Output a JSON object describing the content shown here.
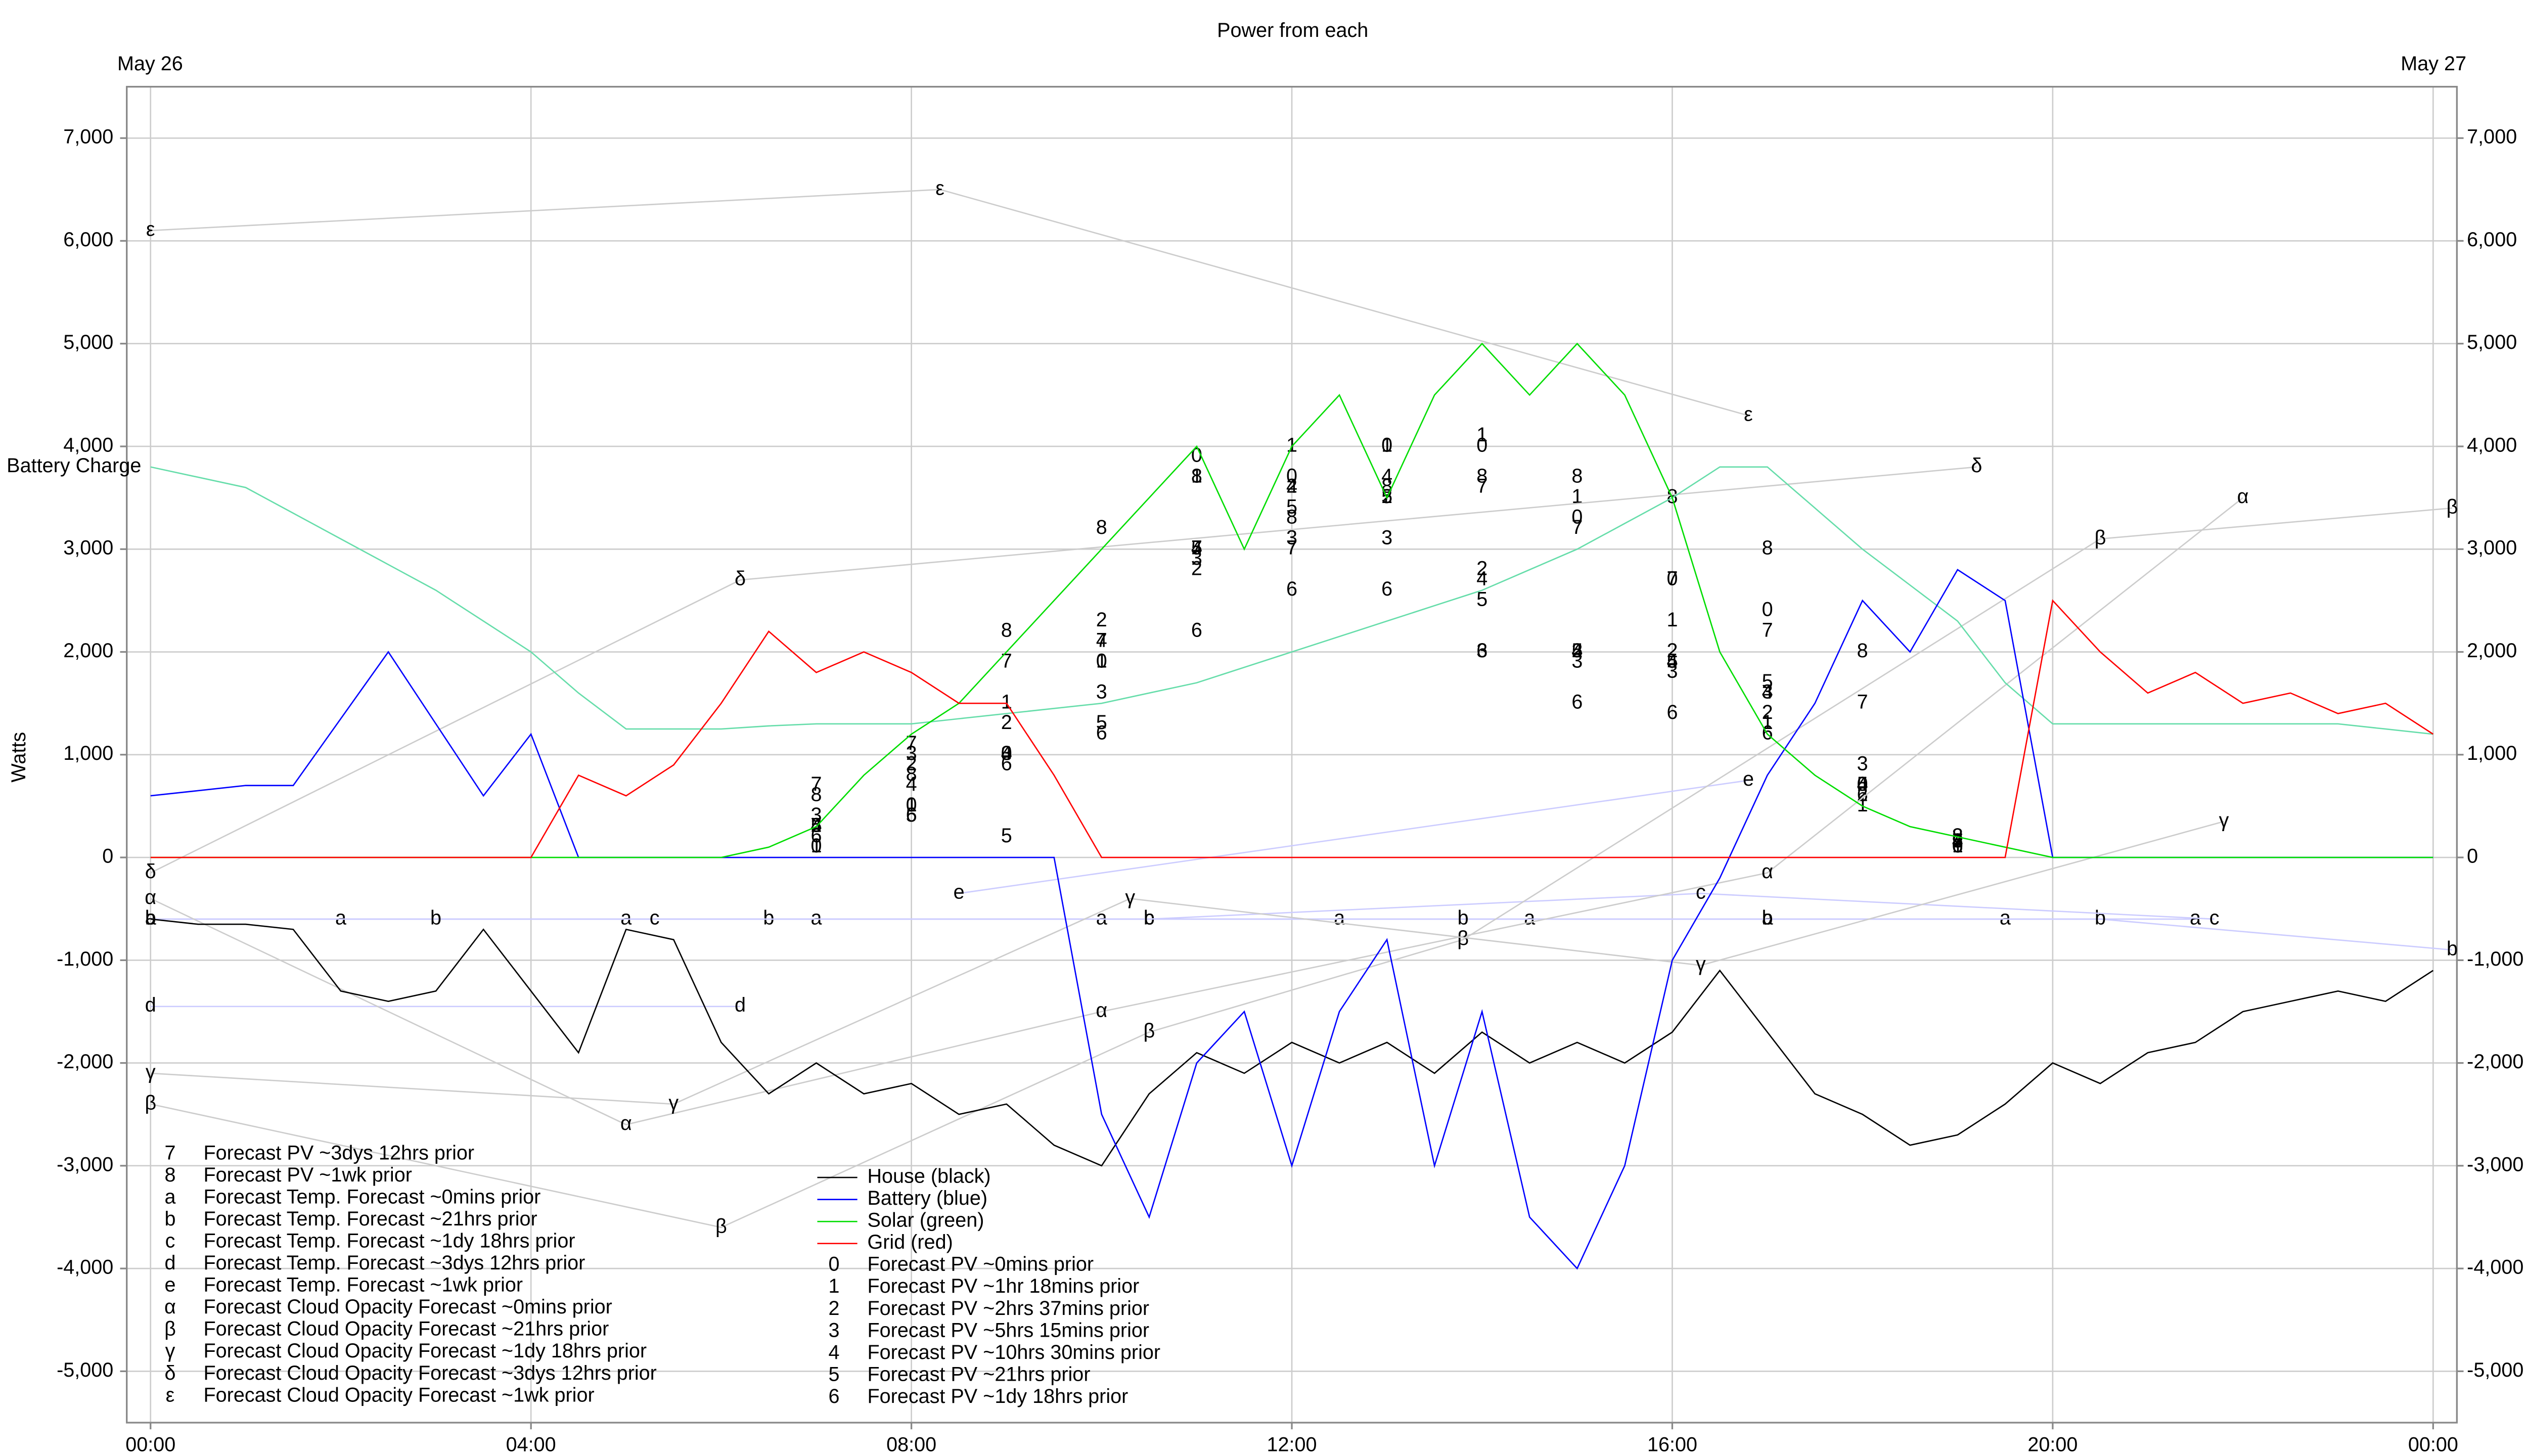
{
  "chart_data": {
    "type": "line",
    "title": "Power from each",
    "date_start": "May 26",
    "date_end": "May 27",
    "y_label": "Watts",
    "grid": true,
    "xlim": [
      -0.25,
      24.25
    ],
    "ylim": [
      -5500,
      7500
    ],
    "xticks": [
      {
        "value": 0,
        "label": "00:00"
      },
      {
        "value": 4,
        "label": "04:00"
      },
      {
        "value": 8,
        "label": "08:00"
      },
      {
        "value": 12,
        "label": "12:00"
      },
      {
        "value": 16,
        "label": "16:00"
      },
      {
        "value": 20,
        "label": "20:00"
      },
      {
        "value": 24,
        "label": "00:00"
      }
    ],
    "yticks": [
      {
        "value": -5000,
        "label": "-5,000"
      },
      {
        "value": -4000,
        "label": "-4,000"
      },
      {
        "value": -3000,
        "label": "-3,000"
      },
      {
        "value": -2000,
        "label": "-2,000"
      },
      {
        "value": -1000,
        "label": "-1,000"
      },
      0,
      {
        "value": 1000,
        "label": "1,000"
      },
      {
        "value": 2000,
        "label": "2,000"
      },
      {
        "value": 3000,
        "label": "3,000"
      },
      {
        "value": 4000,
        "label": "4,000"
      },
      {
        "value": 5000,
        "label": "5,000"
      },
      {
        "value": 6000,
        "label": "6,000"
      },
      {
        "value": 7000,
        "label": "7,000"
      }
    ],
    "x": [
      0,
      0.5,
      1,
      1.5,
      2,
      2.5,
      3,
      3.5,
      4,
      4.5,
      5,
      5.5,
      6,
      6.5,
      7,
      7.5,
      8,
      8.5,
      9,
      9.5,
      10,
      10.5,
      11,
      11.5,
      12,
      12.5,
      13,
      13.5,
      14,
      14.5,
      15,
      15.5,
      16,
      16.5,
      17,
      17.5,
      18,
      18.5,
      19,
      19.5,
      20,
      20.5,
      21,
      21.5,
      22,
      22.5,
      23,
      23.5,
      24
    ],
    "series": [
      {
        "name": "House (black)",
        "color": "#000000",
        "values": [
          -600,
          -650,
          -650,
          -700,
          -1300,
          -1400,
          -1300,
          -700,
          -1300,
          -1900,
          -700,
          -800,
          -1800,
          -2300,
          -2000,
          -2300,
          -2200,
          -2500,
          -2400,
          -2800,
          -3000,
          -2300,
          -1900,
          -2100,
          -1800,
          -2000,
          -1800,
          -2100,
          -1700,
          -2000,
          -1800,
          -2000,
          -1700,
          -1100,
          -1700,
          -2300,
          -2500,
          -2800,
          -2700,
          -2400,
          -2000,
          -2200,
          -1900,
          -1800,
          -1500,
          -1400,
          -1300,
          -1400,
          -1100
        ]
      },
      {
        "name": "Battery (blue)",
        "color": "#0000ff",
        "values": [
          600,
          650,
          700,
          700,
          1350,
          2000,
          1300,
          600,
          1200,
          0,
          0,
          0,
          0,
          0,
          0,
          0,
          0,
          0,
          0,
          0,
          -2500,
          -3500,
          -2000,
          -1500,
          -3000,
          -1500,
          -800,
          -3000,
          -1500,
          -3500,
          -4000,
          -3000,
          -1000,
          -200,
          800,
          1500,
          2500,
          2000,
          2800,
          2500,
          0,
          0,
          0,
          0,
          0,
          0,
          0,
          0,
          0
        ]
      },
      {
        "name": "Solar (green)",
        "color": "#00dd00",
        "values": [
          0,
          0,
          0,
          0,
          0,
          0,
          0,
          0,
          0,
          0,
          0,
          0,
          0,
          100,
          300,
          800,
          1200,
          1500,
          2000,
          2500,
          3000,
          3500,
          4000,
          3000,
          4000,
          4500,
          3500,
          4500,
          5000,
          4500,
          5000,
          4500,
          3500,
          2000,
          1200,
          800,
          500,
          300,
          200,
          100,
          0,
          0,
          0,
          0,
          0,
          0,
          0,
          0,
          0
        ]
      },
      {
        "name": "Grid (red)",
        "color": "#ff0000",
        "values": [
          0,
          0,
          0,
          0,
          0,
          0,
          0,
          0,
          0,
          800,
          600,
          900,
          1500,
          2200,
          1800,
          2000,
          1800,
          1500,
          1500,
          800,
          0,
          0,
          0,
          0,
          0,
          0,
          0,
          0,
          0,
          0,
          0,
          0,
          0,
          0,
          0,
          0,
          0,
          0,
          0,
          0,
          2500,
          2000,
          1600,
          1800,
          1500,
          1600,
          1400,
          1500,
          1200
        ]
      },
      {
        "name": "Forecast PV ~0mins prior",
        "marker": "0",
        "x": [
          7,
          8,
          9,
          10,
          11,
          12,
          13,
          14,
          15,
          16,
          17,
          18,
          19
        ],
        "values": [
          100,
          500,
          1000,
          1900,
          3900,
          3700,
          4000,
          4000,
          3300,
          2700,
          2400,
          700,
          100
        ]
      },
      {
        "name": "Forecast PV ~1hr 18mins prior",
        "marker": "1",
        "x": [
          7,
          8,
          9,
          10,
          11,
          12,
          13,
          14,
          15,
          16,
          17,
          18,
          19
        ],
        "values": [
          100,
          500,
          1500,
          1900,
          3700,
          4000,
          4000,
          4100,
          3500,
          2300,
          1300,
          500,
          100
        ]
      },
      {
        "name": "Forecast PV ~2hrs 37mins prior",
        "marker": "2",
        "x": [
          7,
          8,
          9,
          10,
          11,
          12,
          13,
          14,
          15,
          16,
          17,
          18,
          19
        ],
        "values": [
          300,
          900,
          1300,
          2300,
          2800,
          3600,
          3500,
          2800,
          2000,
          2000,
          1400,
          600,
          150
        ]
      },
      {
        "name": "Forecast PV ~5hrs 15mins prior",
        "marker": "3",
        "x": [
          7,
          8,
          9,
          10,
          11,
          12,
          13,
          14,
          15,
          16,
          17,
          18,
          19
        ],
        "values": [
          400,
          1000,
          1000,
          1600,
          2900,
          3100,
          3100,
          2000,
          1900,
          1800,
          1600,
          900,
          200
        ]
      },
      {
        "name": "Forecast PV ~10hrs 30mins prior",
        "marker": "4",
        "x": [
          7,
          8,
          9,
          10,
          11,
          12,
          13,
          14,
          15,
          16,
          17,
          18,
          19
        ],
        "values": [
          300,
          700,
          1000,
          2100,
          3000,
          3600,
          3700,
          2700,
          2000,
          1900,
          1600,
          700,
          150
        ]
      },
      {
        "name": "Forecast PV ~21hrs prior",
        "marker": "5",
        "x": [
          7,
          8,
          9,
          10,
          11,
          12,
          13,
          14,
          15,
          16,
          17,
          18,
          19
        ],
        "values": [
          300,
          400,
          200,
          1300,
          3000,
          3400,
          3500,
          2500,
          2000,
          1900,
          1700,
          700,
          150
        ]
      },
      {
        "name": "Forecast PV ~1dy 18hrs prior",
        "marker": "6",
        "x": [
          7,
          8,
          9,
          10,
          11,
          12,
          13,
          14,
          15,
          16,
          17,
          18,
          19
        ],
        "values": [
          200,
          400,
          900,
          1200,
          2200,
          2600,
          2600,
          2000,
          1500,
          1400,
          1200,
          600,
          100
        ]
      },
      {
        "name": "Forecast PV ~3dys 12hrs prior",
        "marker": "7",
        "x": [
          7,
          8,
          9,
          10,
          11,
          12,
          13,
          14,
          15,
          16,
          17,
          18,
          19
        ],
        "values": [
          700,
          1100,
          1900,
          2100,
          3000,
          3000,
          3500,
          3600,
          3200,
          2700,
          2200,
          1500,
          150
        ]
      },
      {
        "name": "Forecast PV ~1wk prior",
        "marker": "8",
        "x": [
          7,
          8,
          9,
          10,
          11,
          12,
          13,
          14,
          15,
          16,
          17,
          18,
          19
        ],
        "values": [
          600,
          800,
          2200,
          3200,
          3700,
          3300,
          3600,
          3700,
          3700,
          3500,
          3000,
          2000,
          200
        ]
      },
      {
        "name": "Forecast Temp. Forecast ~0mins prior",
        "marker": "a",
        "color": "#ccccff",
        "x": [
          0,
          2,
          5,
          7,
          10,
          12.5,
          14.5,
          17,
          19.5,
          21.5
        ],
        "values": [
          -600,
          -600,
          -600,
          -600,
          -600,
          -600,
          -600,
          -600,
          -600,
          -600
        ]
      },
      {
        "name": "Forecast Temp. Forecast ~21hrs prior",
        "marker": "b",
        "color": "#ccccff",
        "x": [
          0,
          3,
          6.5,
          10.5,
          13.8,
          17,
          20.5,
          24.2
        ],
        "values": [
          -600,
          -600,
          -600,
          -600,
          -600,
          -600,
          -600,
          -900
        ]
      },
      {
        "name": "Forecast Temp. Forecast ~1dy 18hrs prior",
        "marker": "c",
        "color": "#ccccff",
        "x": [
          5.3,
          10.5,
          16.3,
          21.7
        ],
        "values": [
          -600,
          -600,
          -350,
          -600
        ]
      },
      {
        "name": "Forecast Temp. Forecast ~3dys 12hrs prior",
        "marker": "d",
        "color": "#ccccff",
        "x": [
          0,
          6.2
        ],
        "values": [
          -1450,
          -1450
        ]
      },
      {
        "name": "Forecast Temp. Forecast ~1wk prior",
        "marker": "e",
        "color": "#ccccff",
        "x": [
          8.5,
          16.8
        ],
        "values": [
          -350,
          750
        ]
      },
      {
        "name": "Forecast Cloud Opacity Forecast ~0mins prior",
        "marker": "α",
        "color": "#cccccc",
        "x": [
          0,
          5,
          10,
          17,
          22
        ],
        "values": [
          -400,
          -2600,
          -1500,
          -150,
          3500
        ]
      },
      {
        "name": "Forecast Cloud Opacity Forecast ~21hrs prior",
        "marker": "β",
        "color": "#cccccc",
        "x": [
          0,
          6,
          10.5,
          13.8,
          20.5,
          24.2
        ],
        "values": [
          -2400,
          -3600,
          -1700,
          -800,
          3100,
          3400
        ]
      },
      {
        "name": "Forecast Cloud Opacity Forecast ~1dy 18hrs prior",
        "marker": "γ",
        "color": "#cccccc",
        "x": [
          0,
          5.5,
          10.3,
          16.3,
          21.8
        ],
        "values": [
          -2100,
          -2400,
          -400,
          -1050,
          350
        ]
      },
      {
        "name": "Forecast Cloud Opacity Forecast ~3dys 12hrs prior",
        "marker": "δ",
        "color": "#cccccc",
        "x": [
          0,
          6.2,
          19.2
        ],
        "values": [
          -150,
          2700,
          3800
        ]
      },
      {
        "name": "Forecast Cloud Opacity Forecast ~1wk prior",
        "marker": "ε",
        "color": "#cccccc",
        "x": [
          0,
          8.3,
          16.8
        ],
        "values": [
          6100,
          6500,
          4300
        ]
      },
      {
        "name": "Battery Charge",
        "color": "#66ddaa",
        "legend": false,
        "values": [
          3800,
          3700,
          3600,
          3350,
          3100,
          2850,
          2600,
          2300,
          2000,
          1600,
          1250,
          1250,
          1250,
          1280,
          1300,
          1300,
          1300,
          1350,
          1400,
          1450,
          1500,
          1600,
          1700,
          1850,
          2000,
          2150,
          2300,
          2450,
          2600,
          2800,
          3000,
          3250,
          3500,
          3800,
          3800,
          3400,
          3000,
          2650,
          2300,
          1700,
          1300,
          1300,
          1300,
          1300,
          1300,
          1300,
          1300,
          1250,
          1200
        ]
      }
    ]
  }
}
